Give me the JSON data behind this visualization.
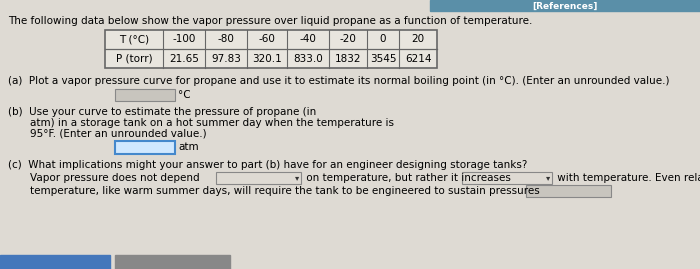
{
  "title": "The following data below show the vapor pressure over liquid propane as a function of temperature.",
  "table_row1": [
    "T (°C)",
    "-100",
    "-80",
    "-60",
    "-40",
    "-20",
    "0",
    "20"
  ],
  "table_row2": [
    "P (torr)",
    "21.65",
    "97.83",
    "320.1",
    "833.0",
    "1832",
    "3545",
    "6214"
  ],
  "part_a_line": "(a)  Plot a vapor pressure curve for propane and use it to estimate its normal boiling point (in °C). (Enter an unrounded value.)",
  "part_a_unit": "°C",
  "part_b_line1": "(b)  Use your curve to estimate the pressure of propane (in",
  "part_b_line2": "atm) in a storage tank on a hot summer day when the temperature is",
  "part_b_line3": "95°F. (Enter an unrounded value.)",
  "part_b_unit": "atm",
  "part_c_line1": "(c)  What implications might your answer to part (b) have for an engineer designing storage tanks?",
  "part_c_pre1": "Vapor pressure does not depend",
  "part_c_mid": " on temperature, but rather it increases",
  "part_c_post": " with temperature. Even rela",
  "part_c_line2": "temperature, like warm summer days, will require the tank to be engineered to sustain pressures",
  "ref_bar_color": "#5a8fa8",
  "bg_color": "#dedad3",
  "table_bg": "#e8e5de",
  "table_border": "#666666",
  "input_a_bg": "#c8c5be",
  "input_a_border": "#888888",
  "input_b_bg": "#d0e8ff",
  "input_b_border": "#4488cc",
  "dropdown_bg": "#dedad3",
  "dropdown_border": "#888888",
  "end_box_bg": "#c8c5be",
  "end_box_border": "#888888",
  "bottom_bar1_color": "#4477bb",
  "bottom_bar2_color": "#888888",
  "font_size": 7.5
}
